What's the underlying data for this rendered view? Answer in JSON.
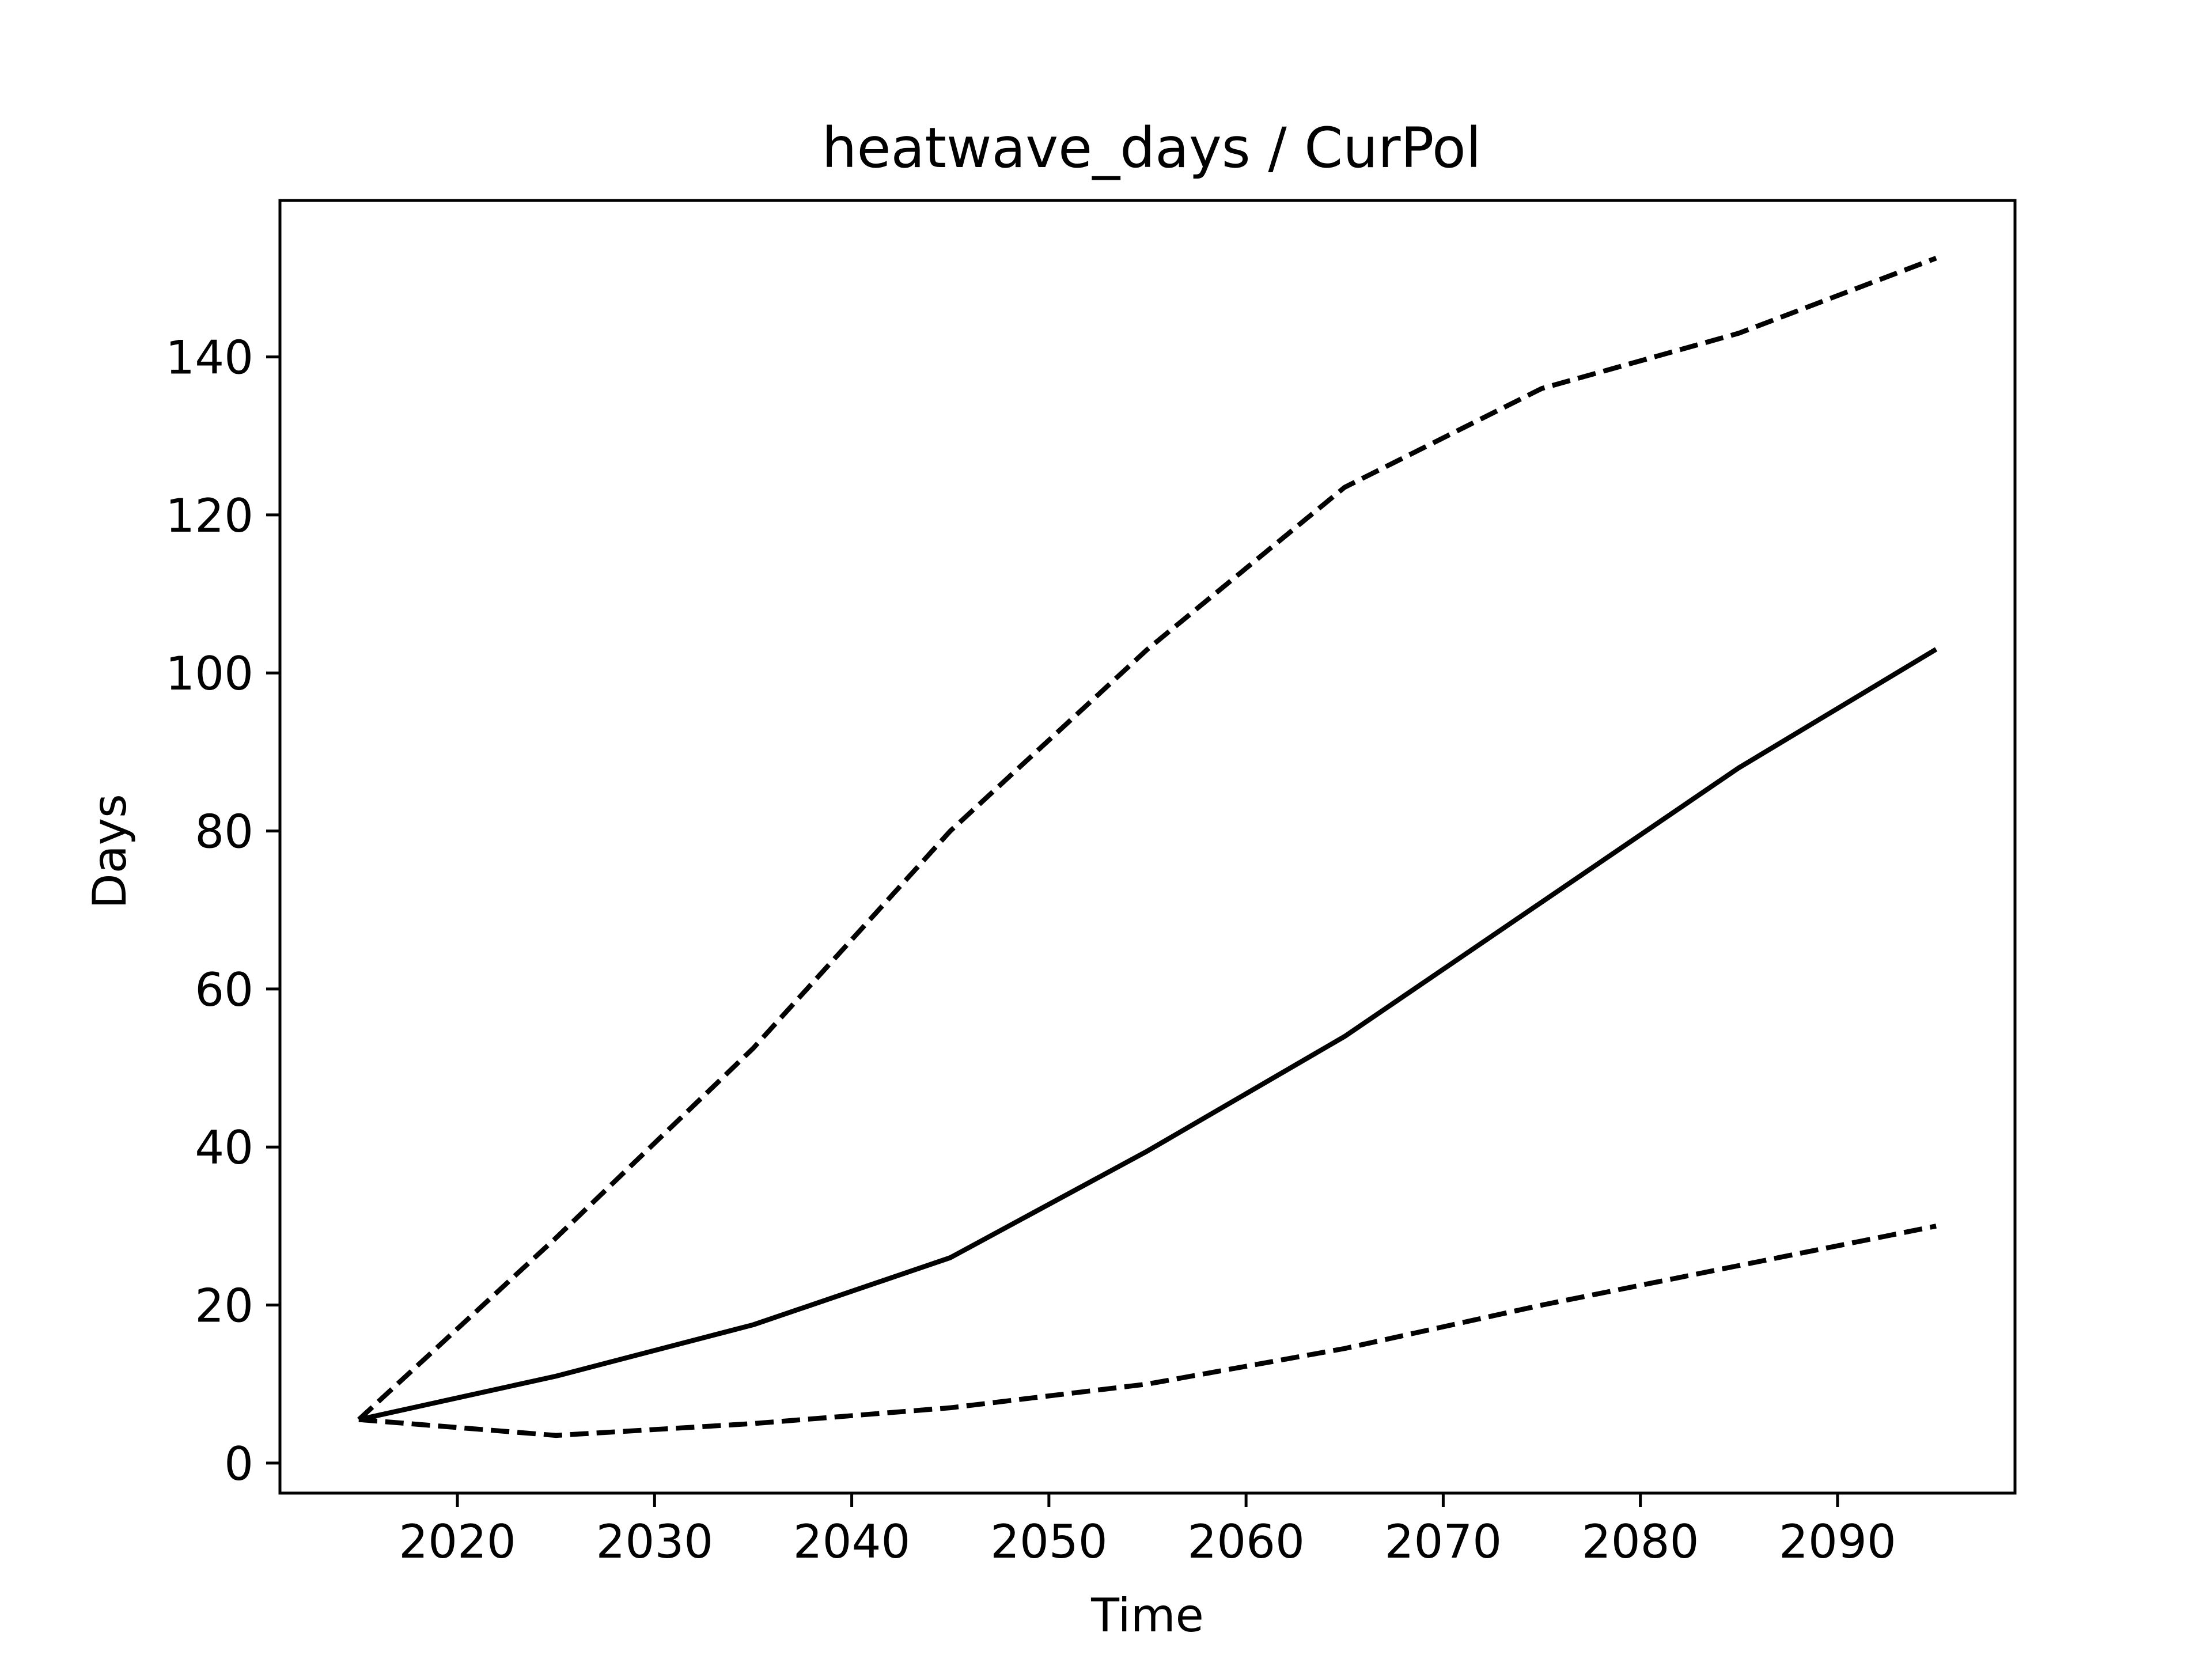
{
  "chart_data": {
    "type": "line",
    "title": "heatwave_days / CurPol",
    "xlabel": "Time",
    "ylabel": "Days",
    "xlim": [
      2011,
      2099
    ],
    "ylim": [
      -3.8,
      159.8
    ],
    "xticks": [
      2020,
      2030,
      2040,
      2050,
      2060,
      2070,
      2080,
      2090
    ],
    "yticks": [
      0,
      20,
      40,
      60,
      80,
      100,
      120,
      140
    ],
    "grid": false,
    "legend": "none",
    "series": [
      {
        "style": "dashed",
        "color": "#000000",
        "x": [
          2015,
          2025,
          2035,
          2045,
          2055,
          2065,
          2075,
          2085,
          2095
        ],
        "y": [
          5.5,
          28.5,
          52.5,
          80,
          103,
          123.5,
          136,
          143,
          152.5
        ]
      },
      {
        "style": "solid",
        "color": "#000000",
        "x": [
          2015,
          2025,
          2035,
          2045,
          2055,
          2065,
          2075,
          2085,
          2095
        ],
        "y": [
          5.5,
          11,
          17.5,
          26,
          39.5,
          54,
          71,
          88,
          103
        ]
      },
      {
        "style": "dashed",
        "color": "#000000",
        "x": [
          2015,
          2025,
          2035,
          2045,
          2055,
          2065,
          2075,
          2085,
          2095
        ],
        "y": [
          5.5,
          3.5,
          5,
          7,
          10,
          14.5,
          20,
          25,
          30
        ]
      }
    ]
  }
}
